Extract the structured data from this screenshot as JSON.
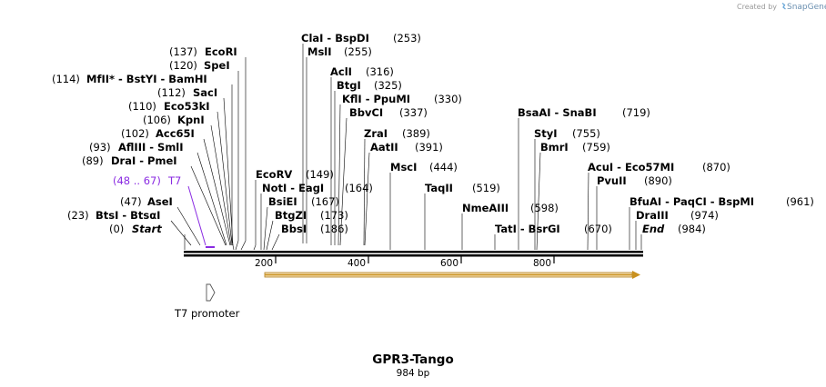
{
  "credit": {
    "prefix": "Created by",
    "brand": "SnapGene"
  },
  "plasmid": {
    "name": "GPR3-Tango",
    "length": "984 bp"
  },
  "ruler": {
    "ticks": [
      "200",
      "400",
      "600",
      "800"
    ]
  },
  "feature": {
    "label": "T7 promoter"
  },
  "primer": {
    "name": "T7",
    "range": "(48 .. 67)"
  },
  "sites": [
    {
      "pos": "(137)",
      "name": "EcoRI"
    },
    {
      "pos": "(120)",
      "name": "SpeI"
    },
    {
      "pos": "(114)",
      "name": "MfII",
      "rest": "* - BstYI - BamHI"
    },
    {
      "pos": "(112)",
      "name": "SacI"
    },
    {
      "pos": "(110)",
      "name": "Eco53kI"
    },
    {
      "pos": "(106)",
      "name": "KpnI"
    },
    {
      "pos": "(102)",
      "name": "Acc65I"
    },
    {
      "pos": "(93)",
      "name": "AflIII - SmlI"
    },
    {
      "pos": "(89)",
      "name": "DraI - PmeI"
    },
    {
      "pos": "(47)",
      "name": "AseI"
    },
    {
      "pos": "(23)",
      "name": "BtsI - BtsαI"
    },
    {
      "pos": "(0)",
      "name": "Start"
    },
    {
      "pos": "(253)",
      "name": "ClaI - BspDI"
    },
    {
      "pos": "(255)",
      "name": "MslI"
    },
    {
      "pos": "(316)",
      "name": "AclI"
    },
    {
      "pos": "(325)",
      "name": "BtgI"
    },
    {
      "pos": "(330)",
      "name": "KflI - PpuMI"
    },
    {
      "pos": "(337)",
      "name": "BbvCI"
    },
    {
      "pos": "(389)",
      "name": "ZraI"
    },
    {
      "pos": "(391)",
      "name": "AatII"
    },
    {
      "pos": "(444)",
      "name": "MscI"
    },
    {
      "pos": "(519)",
      "name": "TaqII"
    },
    {
      "pos": "(598)",
      "name": "NmeAIII"
    },
    {
      "pos": "(149)",
      "name": "EcoRV"
    },
    {
      "pos": "(164)",
      "name": "NotI - EagI"
    },
    {
      "pos": "(167)",
      "name": "BsiEI"
    },
    {
      "pos": "(173)",
      "name": "BtgZI"
    },
    {
      "pos": "(186)",
      "name": "BbsI"
    },
    {
      "pos": "(719)",
      "name": "BsaAI - SnaBI"
    },
    {
      "pos": "(755)",
      "name": "StyI"
    },
    {
      "pos": "(759)",
      "name": "BmrI"
    },
    {
      "pos": "(670)",
      "name": "TatI - BsrGI"
    },
    {
      "pos": "(870)",
      "name": "AcuI - Eco57MI"
    },
    {
      "pos": "(890)",
      "name": "PvuII"
    },
    {
      "pos": "(961)",
      "name": "BfuAI - PaqCI - BspMI"
    },
    {
      "pos": "(974)",
      "name": "DraIII"
    },
    {
      "pos": "(984)",
      "name": "End"
    }
  ]
}
